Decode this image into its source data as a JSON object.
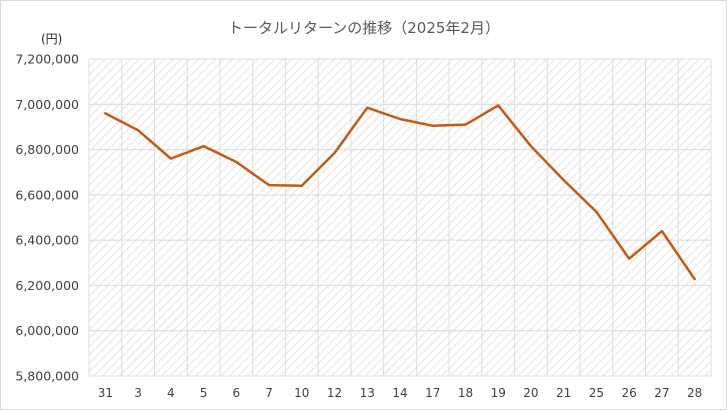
{
  "chart_data": {
    "type": "line",
    "title": "トータルリターンの推移（2025年2月）",
    "unit_label": "(円)",
    "categories": [
      "31",
      "3",
      "4",
      "5",
      "6",
      "7",
      "10",
      "12",
      "13",
      "14",
      "17",
      "18",
      "19",
      "20",
      "21",
      "25",
      "26",
      "27",
      "28"
    ],
    "series": [
      {
        "values": [
          6960000,
          6885000,
          6760000,
          6815000,
          6745000,
          6643000,
          6640000,
          6785000,
          6985000,
          6935000,
          6905000,
          6910000,
          6995000,
          6815000,
          6665000,
          6525000,
          6318000,
          6440000,
          6228000
        ],
        "color": "#C55A11"
      }
    ],
    "ylim": [
      5800000,
      7200000
    ],
    "yticks": [
      "5,800,000",
      "6,000,000",
      "6,200,000",
      "6,400,000",
      "6,600,000",
      "6,800,000",
      "7,000,000",
      "7,200,000"
    ],
    "ytick_values": [
      5800000,
      6000000,
      6200000,
      6400000,
      6600000,
      6800000,
      7000000,
      7200000
    ],
    "grid": true,
    "legend": "none",
    "colors": {
      "grid": "#dcdcdc",
      "plot_hatch": "#eeeeee",
      "text": "#404040"
    }
  }
}
